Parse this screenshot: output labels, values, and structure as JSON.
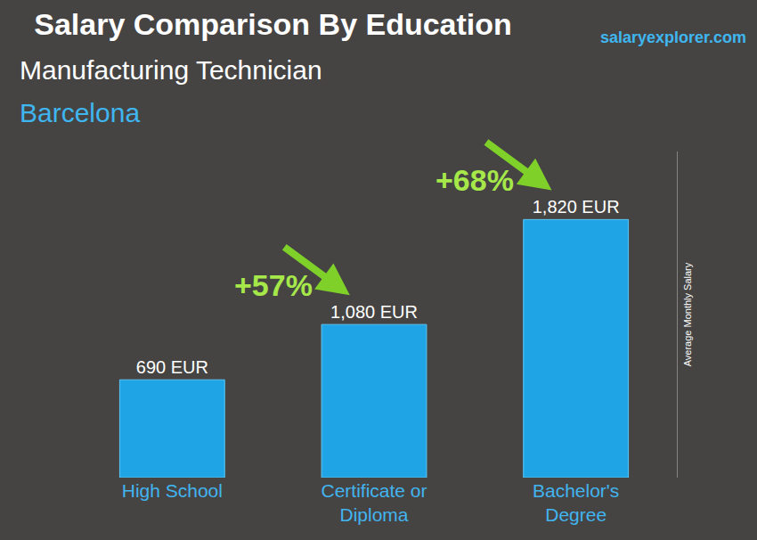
{
  "chart_data": {
    "type": "bar",
    "title": "Salary Comparison By Education",
    "subtitle": "Manufacturing Technician",
    "location": "Barcelona",
    "source": "salaryexplorer.com",
    "y_label": "Average Monthly Salary",
    "categories": [
      "High School",
      "Certificate or Diploma",
      "Bachelor's Degree"
    ],
    "values": [
      690,
      1080,
      1820
    ],
    "value_labels": [
      "690 EUR",
      "1,080 EUR",
      "1,820 EUR"
    ],
    "data_labels": true,
    "color": "#1fa5e6",
    "ylim": [
      0,
      2300
    ],
    "yticks": [],
    "grid": false,
    "tick_labels": "x",
    "annotations": [
      {
        "text": "+57%",
        "from": "High School",
        "to": "Certificate or Diploma"
      },
      {
        "text": "+68%",
        "from": "Certificate or Diploma",
        "to": "Bachelor's Degree"
      }
    ]
  }
}
